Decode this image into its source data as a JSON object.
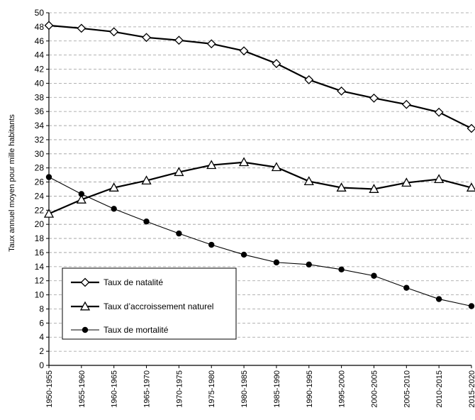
{
  "chart_data": {
    "type": "line",
    "title": "",
    "xlabel": "",
    "ylabel": "Taux annuel moyen pour mille habitants",
    "ylim": [
      0,
      50
    ],
    "yticks": [
      0,
      2,
      4,
      6,
      8,
      10,
      12,
      14,
      16,
      18,
      20,
      22,
      24,
      26,
      28,
      30,
      32,
      34,
      36,
      38,
      40,
      42,
      44,
      46,
      48,
      50
    ],
    "grid": "horizontal-dashed",
    "legend_position": "bottom-left",
    "categories": [
      "1950-1955",
      "1955-1960",
      "1960-1965",
      "1965-1970",
      "1970-1975",
      "1975-1980",
      "1980-1985",
      "1985-1990",
      "1990-1995",
      "1995-2000",
      "2000-2005",
      "2005-2010",
      "2010-2015",
      "2015-2020"
    ],
    "series": [
      {
        "name": "Taux de natalité",
        "marker": "diamond-open",
        "color": "#000000",
        "values": [
          48.2,
          47.8,
          47.3,
          46.5,
          46.1,
          45.6,
          44.6,
          42.8,
          40.5,
          38.9,
          37.9,
          37.0,
          35.9,
          33.6
        ]
      },
      {
        "name": "Taux d’accroissement naturel",
        "marker": "triangle-open",
        "color": "#000000",
        "values": [
          21.5,
          23.5,
          25.2,
          26.2,
          27.4,
          28.4,
          28.8,
          28.1,
          26.1,
          25.2,
          25.0,
          25.9,
          26.4,
          25.2
        ]
      },
      {
        "name": "Taux de mortalité",
        "marker": "circle-filled",
        "color": "#000000",
        "values": [
          26.7,
          24.3,
          22.2,
          20.4,
          18.7,
          17.1,
          15.7,
          14.6,
          14.3,
          13.6,
          12.7,
          11.0,
          9.4,
          8.4
        ]
      }
    ]
  }
}
